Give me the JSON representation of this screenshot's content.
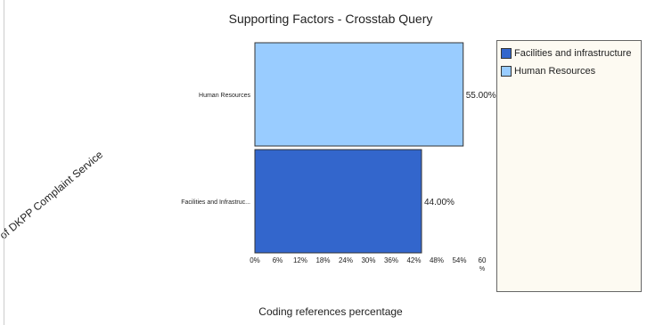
{
  "chart_data": {
    "type": "bar",
    "orientation": "horizontal",
    "title": "Supporting Factors - Crosstab Query",
    "xlabel": "Coding references percentage",
    "ylabel": "of DKPP Complaint Service",
    "categories": [
      "Human Resources",
      "Facilities and Infrastruc..."
    ],
    "values": [
      55.0,
      44.0
    ],
    "data_labels": [
      "55.00%",
      "44.00%"
    ],
    "colors": [
      "#99ccff",
      "#3366cc"
    ],
    "xlim": [
      0,
      60
    ],
    "x_ticks": [
      "0%",
      "6%",
      "12%",
      "18%",
      "24%",
      "30%",
      "36%",
      "42%",
      "48%",
      "54%",
      "60"
    ],
    "x_unit": "%",
    "grid": false,
    "legend_position": "right",
    "legend": [
      {
        "label": "Facilities and infrastructure",
        "color": "#3366cc"
      },
      {
        "label": "Human Resources",
        "color": "#99ccff"
      }
    ]
  }
}
